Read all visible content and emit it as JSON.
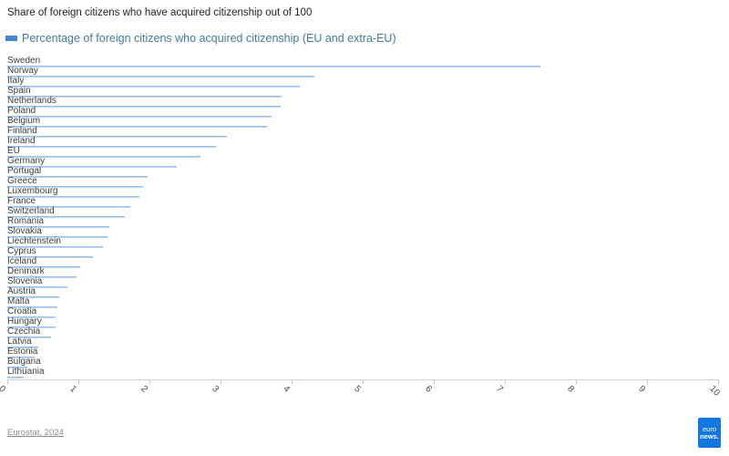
{
  "header": {
    "title": "Share of foreign citizens who have acquired citizenship out of 100"
  },
  "legend": {
    "label": "Percentage of foreign citizens who acquired citizenship (EU and extra-EU)",
    "marker_color": "#4585d4"
  },
  "chart_data": {
    "type": "bar",
    "orientation": "horizontal",
    "title": "Share of foreign citizens who have acquired citizenship out of 100",
    "series_label": "Percentage of foreign citizens who acquired citizenship (EU and extra-EU)",
    "categories": [
      "Sweden",
      "Norway",
      "Italy",
      "Spain",
      "Netherlands",
      "Poland",
      "Belgium",
      "Finland",
      "Ireland",
      "EU",
      "Germany",
      "Portugal",
      "Greece",
      "Luxembourg",
      "France",
      "Switzerland",
      "Romania",
      "Slovakia",
      "Liechtenstein",
      "Cyprus",
      "Iceland",
      "Denmark",
      "Slovenia",
      "Austria",
      "Malta",
      "Croatia",
      "Hungary",
      "Czechia",
      "Latvia",
      "Estonia",
      "Bulgaria",
      "Lithuania"
    ],
    "values": [
      7.5,
      4.32,
      4.12,
      3.86,
      3.84,
      3.72,
      3.66,
      3.09,
      2.93,
      2.72,
      2.38,
      1.97,
      1.91,
      1.86,
      1.73,
      1.66,
      1.44,
      1.41,
      1.34,
      1.21,
      1.02,
      0.98,
      0.84,
      0.73,
      0.7,
      0.68,
      0.68,
      0.62,
      0.44,
      0.37,
      0.28,
      0.23
    ],
    "xlim": [
      0,
      10
    ],
    "x_ticks": [
      0,
      1,
      2,
      3,
      4,
      5,
      6,
      7,
      8,
      9,
      10
    ],
    "grid": "off",
    "legend_position": "top-left",
    "bar_color_top": "#84b1e9",
    "bar_color_bottom": "#cfe3f8"
  },
  "footer": {
    "source": "Eurostat, 2024",
    "logo": {
      "line1": "euro",
      "line2": "news.",
      "color": "#1277e3"
    }
  }
}
